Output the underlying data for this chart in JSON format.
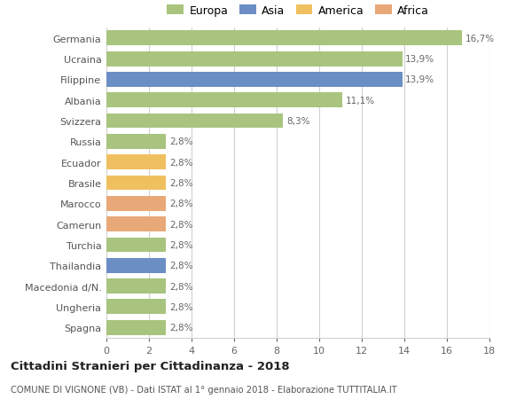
{
  "categories": [
    "Germania",
    "Ucraina",
    "Filippine",
    "Albania",
    "Svizzera",
    "Russia",
    "Ecuador",
    "Brasile",
    "Marocco",
    "Camerun",
    "Turchia",
    "Thailandia",
    "Macedonia d/N.",
    "Ungheria",
    "Spagna"
  ],
  "values": [
    16.7,
    13.9,
    13.9,
    11.1,
    8.3,
    2.8,
    2.8,
    2.8,
    2.8,
    2.8,
    2.8,
    2.8,
    2.8,
    2.8,
    2.8
  ],
  "labels": [
    "16,7%",
    "13,9%",
    "13,9%",
    "11,1%",
    "8,3%",
    "2,8%",
    "2,8%",
    "2,8%",
    "2,8%",
    "2,8%",
    "2,8%",
    "2,8%",
    "2,8%",
    "2,8%",
    "2,8%"
  ],
  "colors": [
    "#a8c47e",
    "#a8c47e",
    "#6b8ec4",
    "#a8c47e",
    "#a8c47e",
    "#a8c47e",
    "#f0c060",
    "#f0c060",
    "#e8a878",
    "#e8a878",
    "#a8c47e",
    "#6b8ec4",
    "#a8c47e",
    "#a8c47e",
    "#a8c47e"
  ],
  "legend_labels": [
    "Europa",
    "Asia",
    "America",
    "Africa"
  ],
  "legend_colors": [
    "#a8c47e",
    "#6b8ec4",
    "#f0c060",
    "#e8a878"
  ],
  "title": "Cittadini Stranieri per Cittadinanza - 2018",
  "subtitle": "COMUNE DI VIGNONE (VB) - Dati ISTAT al 1° gennaio 2018 - Elaborazione TUTTITALIA.IT",
  "xlim": [
    0,
    18
  ],
  "xticks": [
    0,
    2,
    4,
    6,
    8,
    10,
    12,
    14,
    16,
    18
  ],
  "background_color": "#ffffff",
  "grid_color": "#d0d0d0",
  "bar_height": 0.72
}
